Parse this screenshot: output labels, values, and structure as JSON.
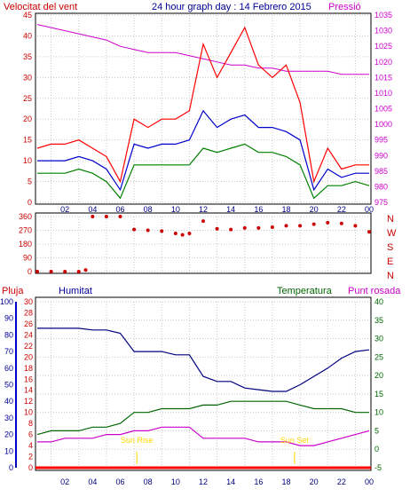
{
  "header": {
    "left_label": "Velocitat del vent",
    "title": "24 hour graph day : 14 Febrero 2015",
    "right_label": "Pressió"
  },
  "time_axis": {
    "ticks": [
      "02",
      "04",
      "06",
      "08",
      "10",
      "12",
      "14",
      "16",
      "18",
      "20",
      "22",
      "00"
    ]
  },
  "colors": {
    "wind_gust": "#ff0000",
    "wind_avg": "#0000cc",
    "wind_low": "#008000",
    "pressure": "#cc00cc",
    "direction": "#cc0000",
    "humidity": "#000080",
    "temperature": "#006600",
    "dewpoint": "#cc00cc",
    "rain": "#ff0000",
    "sun": "#ffd700"
  },
  "chart_data": [
    {
      "type": "line",
      "name": "wind-and-pressure",
      "left_axis": {
        "label": "Velocitat del vent",
        "ticks": [
          0,
          5,
          10,
          15,
          20,
          25,
          30,
          35,
          40,
          45
        ],
        "range": [
          0,
          45
        ]
      },
      "right_axis": {
        "label": "Pressió",
        "ticks": [
          975,
          980,
          985,
          990,
          995,
          1000,
          1005,
          1010,
          1015,
          1020,
          1025,
          1030,
          1035
        ],
        "range": [
          975,
          1035
        ]
      },
      "x_hours": [
        0,
        1,
        2,
        3,
        4,
        5,
        6,
        7,
        8,
        9,
        10,
        11,
        12,
        13,
        14,
        15,
        16,
        17,
        18,
        19,
        20,
        21,
        22,
        23,
        24
      ],
      "series": [
        {
          "name": "wind_gust",
          "values": [
            13,
            14,
            14,
            15,
            13,
            11,
            5,
            20,
            18,
            20,
            20,
            22,
            38,
            30,
            36,
            42,
            33,
            30,
            33,
            24,
            5,
            13,
            8,
            9,
            9
          ]
        },
        {
          "name": "wind_avg",
          "values": [
            10,
            10,
            10,
            11,
            10,
            8,
            3,
            14,
            13,
            14,
            14,
            15,
            22,
            18,
            20,
            21,
            18,
            18,
            17,
            15,
            3,
            8,
            6,
            7,
            7
          ]
        },
        {
          "name": "wind_low",
          "values": [
            7,
            7,
            7,
            8,
            7,
            5,
            1,
            9,
            9,
            9,
            9,
            9,
            13,
            12,
            13,
            14,
            12,
            12,
            11,
            9,
            1,
            4,
            4,
            5,
            4
          ]
        },
        {
          "name": "pressure",
          "values": [
            1032,
            1031,
            1030,
            1029,
            1028,
            1027,
            1025,
            1024,
            1023,
            1023,
            1023,
            1022,
            1021,
            1020,
            1019,
            1019,
            1018,
            1018,
            1017,
            1017,
            1017,
            1017,
            1016,
            1016,
            1016
          ]
        }
      ]
    },
    {
      "type": "scatter",
      "name": "wind-direction",
      "left_axis": {
        "ticks": [
          0,
          90,
          180,
          270,
          360
        ],
        "range": [
          0,
          360
        ]
      },
      "right_axis": {
        "labels": [
          "N",
          "W",
          "S",
          "E",
          "N"
        ]
      },
      "x_hours": [
        0,
        1,
        2,
        3,
        3.5,
        4,
        5,
        6,
        7,
        8,
        9,
        10,
        10.5,
        11,
        12,
        13,
        14,
        15,
        16,
        17,
        18,
        19,
        20,
        21,
        22,
        23,
        24
      ],
      "values": [
        0,
        0,
        0,
        0,
        10,
        360,
        360,
        360,
        275,
        270,
        265,
        250,
        240,
        250,
        330,
        280,
        275,
        285,
        285,
        290,
        300,
        300,
        310,
        320,
        315,
        300,
        260
      ]
    },
    {
      "type": "line",
      "name": "humidity-temperature-dewpoint",
      "labels": {
        "rain": "Pluja",
        "humidity": "Humitat",
        "temperature": "Temperatura",
        "dewpoint": "Punt rosada"
      },
      "humidity_axis": {
        "ticks": [
          0,
          10,
          20,
          30,
          40,
          50,
          60,
          70,
          80,
          90,
          100
        ],
        "range": [
          0,
          100
        ]
      },
      "rain_axis": {
        "ticks": [
          0,
          2,
          4,
          6,
          8,
          10,
          12,
          14,
          16,
          18,
          20,
          22,
          24,
          26,
          28,
          30
        ],
        "range": [
          0,
          30
        ]
      },
      "temperature_axis": {
        "ticks": [
          -5,
          0,
          5,
          10,
          15,
          20,
          25,
          30,
          35,
          40
        ],
        "range": [
          -5,
          40
        ]
      },
      "x_hours": [
        0,
        1,
        2,
        3,
        4,
        5,
        6,
        7,
        8,
        9,
        10,
        11,
        12,
        13,
        14,
        15,
        16,
        17,
        18,
        19,
        20,
        21,
        22,
        23,
        24
      ],
      "series": [
        {
          "name": "humidity",
          "values": [
            84,
            84,
            84,
            84,
            83,
            83,
            81,
            70,
            70,
            70,
            68,
            68,
            55,
            52,
            52,
            48,
            47,
            46,
            46,
            50,
            55,
            60,
            66,
            70,
            71
          ]
        },
        {
          "name": "temperature",
          "values": [
            4,
            5,
            5,
            5,
            6,
            6,
            7,
            10,
            10,
            11,
            11,
            11,
            12,
            12,
            13,
            13,
            13,
            13,
            13,
            12,
            11,
            11,
            11,
            10,
            10
          ]
        },
        {
          "name": "dewpoint",
          "values": [
            2,
            2,
            3,
            3,
            3,
            4,
            4,
            5,
            5,
            6,
            6,
            6,
            3,
            3,
            3,
            3,
            2,
            2,
            2,
            1,
            1,
            2,
            3,
            4,
            5
          ]
        },
        {
          "name": "rain",
          "values": [
            0,
            0,
            0,
            0,
            0,
            0,
            0,
            0,
            0,
            0,
            0,
            0,
            0,
            0,
            0,
            0,
            0,
            0,
            0,
            0,
            0,
            0,
            0,
            0,
            0
          ]
        }
      ],
      "annotations": [
        {
          "text": "Sun Rise",
          "x_hour": 7.2
        },
        {
          "text": "Sun Set",
          "x_hour": 18.6
        }
      ]
    }
  ]
}
